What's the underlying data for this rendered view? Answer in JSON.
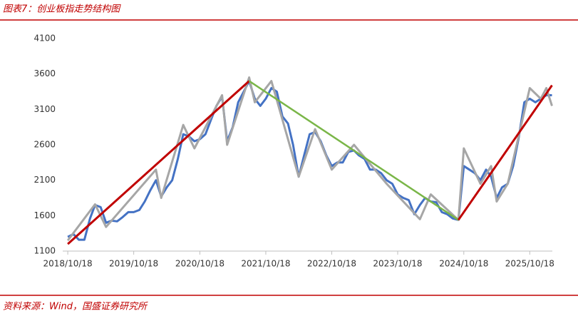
{
  "chart_data": {
    "type": "line",
    "title": "图表7：创业板指走势结构图",
    "source": "资料来源：Wind，国盛证券研究所",
    "xlim": [
      "2018/09/20",
      "2026/02/20"
    ],
    "xticks": [
      "2018/10/18",
      "2019/10/18",
      "2020/10/18",
      "2021/10/18",
      "2022/10/18",
      "2023/10/18",
      "2024/10/18",
      "2025/10/18"
    ],
    "ylim": [
      1100,
      4100
    ],
    "yticks": [
      1100,
      1600,
      2100,
      2600,
      3100,
      3600,
      4100
    ],
    "grid": false,
    "series": [
      {
        "color": "#4472c4",
        "width": 3,
        "x": [
          "2018/10/18",
          "2018/11/18",
          "2018/12/18",
          "2019/01/18",
          "2019/02/18",
          "2019/03/18",
          "2019/04/18",
          "2019/05/18",
          "2019/06/18",
          "2019/07/18",
          "2019/08/18",
          "2019/09/18",
          "2019/10/18",
          "2019/11/18",
          "2019/12/18",
          "2020/01/18",
          "2020/02/18",
          "2020/03/18",
          "2020/04/18",
          "2020/05/18",
          "2020/06/18",
          "2020/07/18",
          "2020/08/18",
          "2020/09/18",
          "2020/10/18",
          "2020/11/18",
          "2020/12/18",
          "2021/01/18",
          "2021/02/18",
          "2021/03/18",
          "2021/04/18",
          "2021/05/18",
          "2021/06/18",
          "2021/07/18",
          "2021/08/18",
          "2021/09/18",
          "2021/10/18",
          "2021/11/18",
          "2021/12/18",
          "2022/01/18",
          "2022/02/18",
          "2022/03/18",
          "2022/04/18",
          "2022/05/18",
          "2022/06/18",
          "2022/07/18",
          "2022/08/18",
          "2022/09/18",
          "2022/10/18",
          "2022/11/18",
          "2022/12/18",
          "2023/01/18",
          "2023/02/18",
          "2023/03/18",
          "2023/04/18",
          "2023/05/18",
          "2023/06/18",
          "2023/07/18",
          "2023/08/18",
          "2023/09/18",
          "2023/10/18",
          "2023/11/18",
          "2023/12/18",
          "2024/01/18",
          "2024/02/18",
          "2024/03/18",
          "2024/04/18",
          "2024/05/18",
          "2024/06/18",
          "2024/07/18",
          "2024/08/18",
          "2024/09/18",
          "2024/10/18",
          "2024/11/18",
          "2024/12/18",
          "2025/01/18",
          "2025/02/18",
          "2025/03/18",
          "2025/04/18",
          "2025/05/18",
          "2025/06/18",
          "2025/07/18",
          "2025/08/18",
          "2025/09/18",
          "2025/10/18",
          "2025/11/18",
          "2025/12/18",
          "2026/01/18",
          "2026/02/18"
        ],
        "values": [
          1300,
          1340,
          1260,
          1260,
          1560,
          1750,
          1720,
          1500,
          1530,
          1520,
          1580,
          1650,
          1650,
          1680,
          1800,
          1960,
          2100,
          1870,
          2000,
          2100,
          2400,
          2750,
          2720,
          2650,
          2680,
          2750,
          2950,
          3150,
          3280,
          2650,
          2850,
          3200,
          3350,
          3500,
          3250,
          3150,
          3250,
          3400,
          3350,
          3000,
          2900,
          2600,
          2150,
          2450,
          2750,
          2780,
          2650,
          2450,
          2300,
          2350,
          2350,
          2500,
          2520,
          2450,
          2400,
          2250,
          2250,
          2200,
          2100,
          2050,
          1900,
          1850,
          1820,
          1620,
          1750,
          1850,
          1800,
          1790,
          1650,
          1620,
          1560,
          1540,
          2300,
          2250,
          2200,
          2100,
          2250,
          2150,
          1850,
          2000,
          2050,
          2300,
          2700,
          3200,
          3250,
          3200,
          3250,
          3300,
          3300
        ]
      },
      {
        "color": "#a6a6a6",
        "width": 3,
        "x": [
          "2018/10/18",
          "2019/03/18",
          "2019/05/18",
          "2020/02/18",
          "2020/03/18",
          "2020/07/18",
          "2020/09/18",
          "2021/02/18",
          "2021/03/18",
          "2021/07/18",
          "2021/08/18",
          "2021/11/18",
          "2022/04/18",
          "2022/07/18",
          "2022/10/18",
          "2023/02/18",
          "2023/08/18",
          "2024/02/18",
          "2024/04/18",
          "2024/09/18",
          "2024/10/18",
          "2025/01/18",
          "2025/03/18",
          "2025/04/18",
          "2025/06/18",
          "2025/10/18",
          "2025/12/18",
          "2026/01/18",
          "2026/02/18"
        ],
        "values": [
          1250,
          1760,
          1440,
          2250,
          1850,
          2880,
          2550,
          3300,
          2600,
          3550,
          3200,
          3500,
          2150,
          2820,
          2250,
          2600,
          2050,
          1550,
          1900,
          1540,
          2550,
          2050,
          2300,
          1800,
          2050,
          3400,
          3250,
          3400,
          3150
        ]
      },
      {
        "color": "#c00000",
        "width": 3,
        "x": [
          "2018/10/18",
          "2021/07/18"
        ],
        "values": [
          1200,
          3500
        ]
      },
      {
        "color": "#7ab648",
        "width": 2.5,
        "x": [
          "2021/07/18",
          "2024/09/18"
        ],
        "values": [
          3500,
          1540
        ]
      },
      {
        "color": "#c00000",
        "width": 3,
        "x": [
          "2024/09/18",
          "2026/02/18"
        ],
        "values": [
          1540,
          3440
        ]
      }
    ]
  }
}
